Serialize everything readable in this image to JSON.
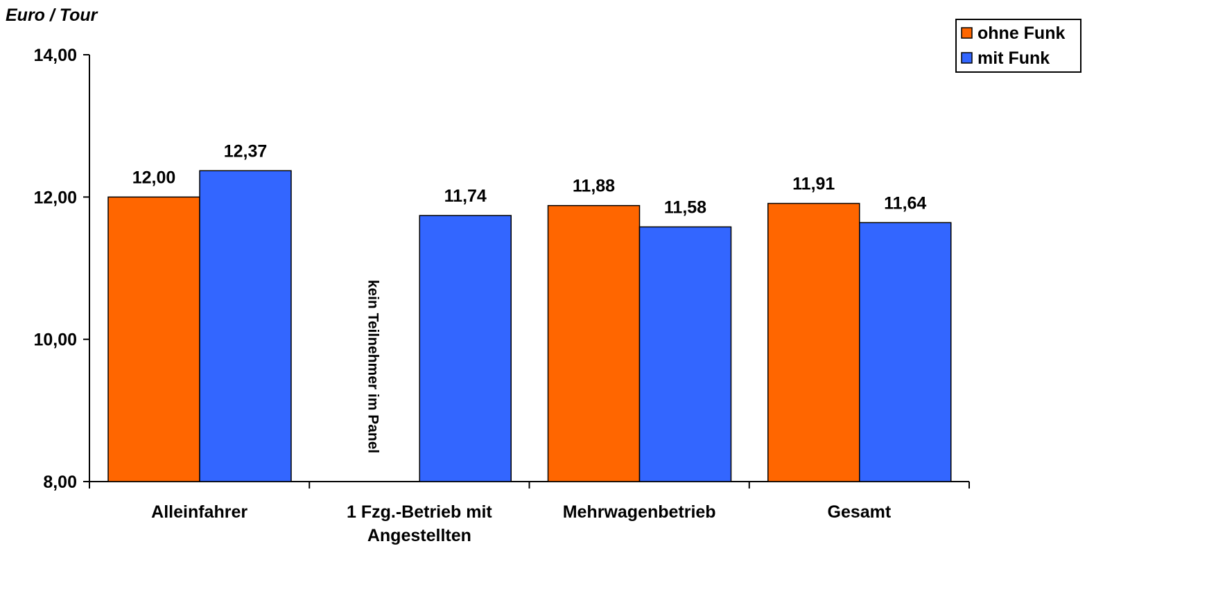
{
  "chart_data": {
    "type": "bar",
    "ylabel": "Euro / Tour",
    "ylim": [
      8,
      14
    ],
    "yticks": [
      8,
      10,
      12,
      14
    ],
    "ytick_labels": [
      "8,00",
      "10,00",
      "12,00",
      "14,00"
    ],
    "categories": [
      [
        "Alleinfahrer"
      ],
      [
        "1 Fzg.-Betrieb mit",
        "Angestellten"
      ],
      [
        "Mehrwagenbetrieb"
      ],
      [
        "Gesamt"
      ]
    ],
    "series": [
      {
        "name": "ohne Funk",
        "color": "#FF6600",
        "values": [
          12.0,
          null,
          11.88,
          11.91
        ],
        "labels": [
          "12,00",
          null,
          "11,88",
          "11,91"
        ]
      },
      {
        "name": "mit Funk",
        "color": "#3366FF",
        "values": [
          12.37,
          11.74,
          11.58,
          11.64
        ],
        "labels": [
          "12,37",
          "11,74",
          "11,58",
          "11,64"
        ]
      }
    ],
    "annotations": [
      {
        "category_index": 1,
        "series_index": 0,
        "text": "kein Teilnehmer im Panel"
      }
    ],
    "legend": {
      "position": "top-right"
    },
    "grid": false
  }
}
